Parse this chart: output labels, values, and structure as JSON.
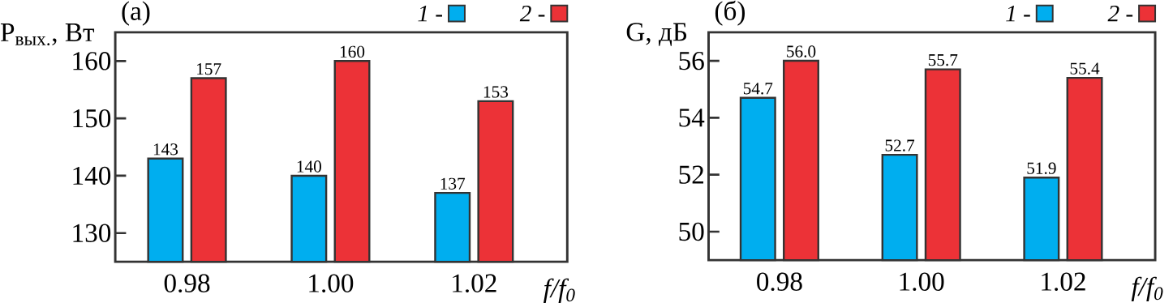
{
  "chart_data": [
    {
      "type": "bar",
      "title": "(a)",
      "ylabel": "P$_{вых.}$, Вт",
      "xlabel": "f/f$_{0}$",
      "categories": [
        "0.98",
        "1.00",
        "1.02"
      ],
      "ylim": [
        125,
        165
      ],
      "yticks": [
        130,
        140,
        150,
        160
      ],
      "legend": "top right",
      "series": [
        {
          "name": "1 -",
          "color": "#00aeef",
          "values": [
            143,
            140,
            137
          ],
          "value_labels": [
            "143",
            "140",
            "137"
          ]
        },
        {
          "name": "2 -",
          "color": "#ec3237",
          "values": [
            157,
            160,
            153
          ],
          "value_labels": [
            "157",
            "160",
            "153"
          ]
        }
      ]
    },
    {
      "type": "bar",
      "title": "(б)",
      "ylabel": "G, дБ",
      "xlabel": "f/f$_{0}$",
      "categories": [
        "0.98",
        "1.00",
        "1.02"
      ],
      "ylim": [
        49,
        57
      ],
      "yticks": [
        50,
        52,
        54,
        56
      ],
      "legend": "top right",
      "series": [
        {
          "name": "1 -",
          "color": "#00aeef",
          "values": [
            54.7,
            52.7,
            51.9
          ],
          "value_labels": [
            "54.7",
            "52.7",
            "51.9"
          ]
        },
        {
          "name": "2 -",
          "color": "#ec3237",
          "values": [
            56.0,
            55.7,
            55.4
          ],
          "value_labels": [
            "56.0",
            "55.7",
            "55.4"
          ]
        }
      ]
    }
  ]
}
